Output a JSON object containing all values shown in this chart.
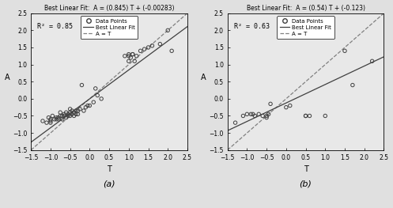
{
  "subplot_a": {
    "title": "Best Linear Fit:  A = (0.845) T + (-0.00283)",
    "r2": "R² = 0.85",
    "slope": 0.845,
    "intercept": -0.00283,
    "xlim": [
      -1.5,
      2.5
    ],
    "ylim": [
      -1.5,
      2.5
    ],
    "xlabel": "T",
    "ylabel": "A",
    "label": "(a)",
    "data_x": [
      -1.2,
      -1.1,
      -1.05,
      -1.0,
      -1.0,
      -1.0,
      -0.95,
      -0.9,
      -0.85,
      -0.85,
      -0.8,
      -0.8,
      -0.75,
      -0.75,
      -0.7,
      -0.7,
      -0.65,
      -0.65,
      -0.6,
      -0.6,
      -0.55,
      -0.55,
      -0.5,
      -0.5,
      -0.5,
      -0.45,
      -0.45,
      -0.4,
      -0.4,
      -0.35,
      -0.35,
      -0.3,
      -0.3,
      -0.25,
      -0.2,
      -0.15,
      -0.1,
      -0.05,
      0.0,
      0.1,
      0.15,
      0.2,
      0.3,
      0.9,
      1.0,
      1.0,
      1.0,
      1.05,
      1.1,
      1.1,
      1.15,
      1.2,
      1.3,
      1.4,
      1.5,
      1.6,
      1.8,
      2.0,
      2.1
    ],
    "data_y": [
      -0.65,
      -0.7,
      -0.55,
      -0.6,
      -0.65,
      -0.7,
      -0.5,
      -0.6,
      -0.55,
      -0.6,
      -0.55,
      -0.6,
      -0.4,
      -0.5,
      -0.5,
      -0.6,
      -0.45,
      -0.5,
      -0.4,
      -0.55,
      -0.45,
      -0.5,
      -0.3,
      -0.4,
      -0.5,
      -0.35,
      -0.45,
      -0.4,
      -0.5,
      -0.35,
      -0.45,
      -0.35,
      -0.45,
      -0.3,
      0.4,
      -0.35,
      -0.25,
      -0.2,
      -0.2,
      -0.1,
      0.3,
      0.1,
      0.0,
      1.25,
      1.1,
      1.25,
      1.3,
      1.2,
      1.3,
      1.3,
      1.1,
      1.25,
      1.4,
      1.45,
      1.5,
      1.55,
      1.6,
      2.0,
      1.4
    ]
  },
  "subplot_b": {
    "title": "Best Linear Fit:  A = (0.54) T + (-0.123)",
    "r2": "R² = 0.63",
    "slope": 0.54,
    "intercept": -0.123,
    "xlim": [
      -1.5,
      2.5
    ],
    "ylim": [
      -1.5,
      2.5
    ],
    "xlabel": "T",
    "ylabel": "A",
    "label": "(b)",
    "data_x": [
      -1.3,
      -1.1,
      -1.0,
      -0.9,
      -0.85,
      -0.8,
      -0.7,
      -0.6,
      -0.5,
      -0.5,
      -0.45,
      -0.4,
      0.0,
      0.1,
      0.5,
      0.5,
      0.6,
      1.0,
      1.5,
      1.7,
      2.2
    ],
    "data_y": [
      -0.7,
      -0.5,
      -0.45,
      -0.45,
      -0.45,
      -0.5,
      -0.45,
      -0.5,
      -0.5,
      -0.55,
      -0.45,
      -0.15,
      -0.25,
      -0.2,
      -0.5,
      -0.5,
      -0.5,
      -0.5,
      1.4,
      0.4,
      1.1
    ]
  },
  "line_color": "#404040",
  "diag_color": "#808080",
  "marker_edge": "#404040",
  "bg_color": "#e8e8e8",
  "fig_bg": "#e0e0e0",
  "xticks": [
    -1.5,
    -1.0,
    -0.5,
    0.0,
    0.5,
    1.0,
    1.5,
    2.0,
    2.5
  ],
  "yticks": [
    -1.5,
    -1.0,
    -0.5,
    0.0,
    0.5,
    1.0,
    1.5,
    2.0,
    2.5
  ]
}
